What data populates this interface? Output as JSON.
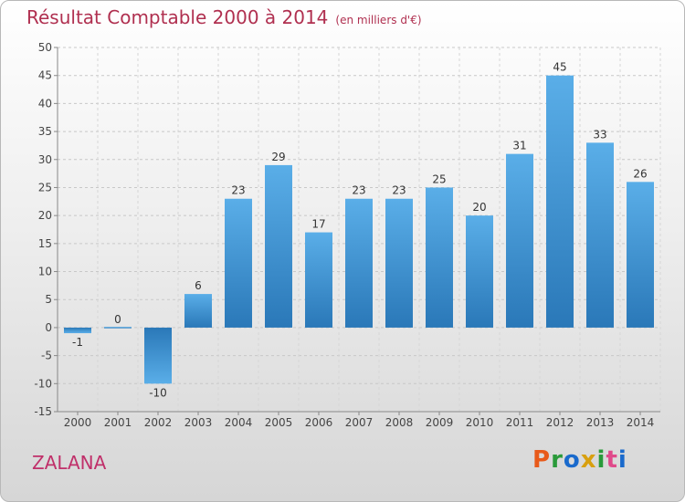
{
  "header": {
    "title": "Résultat Comptable 2000 à 2014",
    "subtitle": "(en milliers d'€)"
  },
  "footer": {
    "commune": "ZALANA",
    "logo_text": "Proxiti"
  },
  "colors": {
    "title": "#b03050",
    "bar_top": "#5aaee8",
    "bar_bottom": "#2a78b8",
    "logo": [
      "#e85a1a",
      "#2a9a3a",
      "#1a6acc",
      "#d8a010",
      "#2a9a3a",
      "#e04a8a",
      "#1a6acc"
    ]
  },
  "chart_data": {
    "type": "bar",
    "title": "Résultat Comptable 2000 à 2014",
    "subtitle": "(en milliers d'€)",
    "categories": [
      "2000",
      "2001",
      "2002",
      "2003",
      "2004",
      "2005",
      "2006",
      "2007",
      "2008",
      "2009",
      "2010",
      "2011",
      "2012",
      "2013",
      "2014"
    ],
    "values": [
      -1,
      0,
      -10,
      6,
      23,
      29,
      17,
      23,
      23,
      25,
      20,
      31,
      45,
      33,
      26
    ],
    "ylim": [
      -15,
      50
    ],
    "yticks": [
      -15,
      -10,
      -5,
      0,
      5,
      10,
      15,
      20,
      25,
      30,
      35,
      40,
      45,
      50
    ],
    "grid": true,
    "xlabel": "",
    "ylabel": ""
  }
}
